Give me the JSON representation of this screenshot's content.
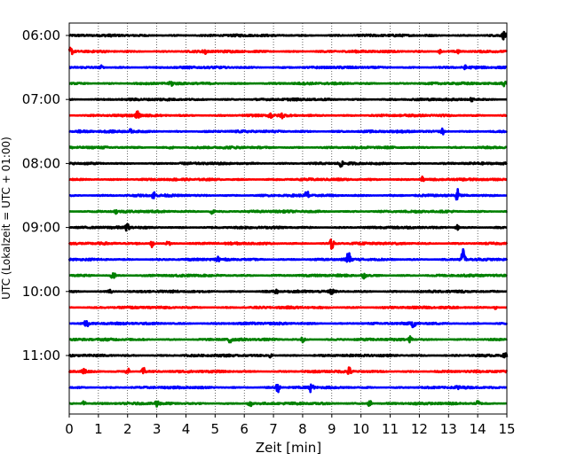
{
  "chart_data": {
    "type": "line",
    "title": "",
    "xlabel": "Zeit  [min]",
    "ylabel": "UTC (Lokalzeit = UTC + 01:00)",
    "xlim": [
      0,
      15
    ],
    "x_ticks": [
      0,
      1,
      2,
      3,
      4,
      5,
      6,
      7,
      8,
      9,
      10,
      11,
      12,
      13,
      14,
      15
    ],
    "y_tick_labels": [
      "06:00",
      "07:00",
      "08:00",
      "09:00",
      "10:00",
      "11:00"
    ],
    "y_tick_rows": [
      0,
      4,
      8,
      12,
      16,
      20
    ],
    "row_interval_min": 15,
    "grid": "vertical-dotted",
    "legend": "none",
    "color_cycle": [
      "#000000",
      "#ff0000",
      "#0000ff",
      "#008000"
    ],
    "series": [
      {
        "start": "06:00",
        "bursts": [
          {
            "t": 14.9,
            "a": 0.6
          }
        ]
      },
      {
        "start": "06:15",
        "bursts": [
          {
            "t": 0.05,
            "a": 0.6
          },
          {
            "t": 4.65,
            "a": 0.4
          },
          {
            "t": 12.7,
            "a": 0.3
          },
          {
            "t": 13.3,
            "a": 0.4
          }
        ]
      },
      {
        "start": "06:30",
        "bursts": [
          {
            "t": 1.1,
            "a": 0.3
          },
          {
            "t": 13.6,
            "a": 0.3
          }
        ]
      },
      {
        "start": "06:45",
        "bursts": [
          {
            "t": 3.5,
            "a": 0.3
          },
          {
            "t": 14.9,
            "a": 0.4
          }
        ]
      },
      {
        "start": "07:00",
        "bursts": [
          {
            "t": 13.8,
            "a": 0.3
          }
        ]
      },
      {
        "start": "07:15",
        "bursts": [
          {
            "t": 2.35,
            "a": 0.8
          },
          {
            "t": 6.9,
            "a": 0.5
          },
          {
            "t": 7.3,
            "a": 0.3
          }
        ]
      },
      {
        "start": "07:30",
        "bursts": [
          {
            "t": 0.4,
            "a": 0.3
          },
          {
            "t": 2.1,
            "a": 0.3
          },
          {
            "t": 12.8,
            "a": 0.5
          }
        ]
      },
      {
        "start": "07:45",
        "bursts": [
          {
            "t": 3.5,
            "a": 0.25
          }
        ]
      },
      {
        "start": "08:00",
        "bursts": [
          {
            "t": 9.3,
            "a": 0.5
          }
        ]
      },
      {
        "start": "08:15",
        "bursts": [
          {
            "t": 12.1,
            "a": 0.4
          }
        ]
      },
      {
        "start": "08:30",
        "bursts": [
          {
            "t": 2.9,
            "a": 0.6
          },
          {
            "t": 8.15,
            "a": 0.8
          },
          {
            "t": 13.3,
            "a": 1.0
          }
        ]
      },
      {
        "start": "08:45",
        "bursts": [
          {
            "t": 1.6,
            "a": 0.3
          },
          {
            "t": 4.9,
            "a": 0.4
          }
        ]
      },
      {
        "start": "09:00",
        "bursts": [
          {
            "t": 2.0,
            "a": 0.7
          },
          {
            "t": 13.3,
            "a": 0.4
          }
        ]
      },
      {
        "start": "09:15",
        "bursts": [
          {
            "t": 2.85,
            "a": 0.6
          },
          {
            "t": 3.4,
            "a": 0.4
          },
          {
            "t": 9.0,
            "a": 0.8
          }
        ]
      },
      {
        "start": "09:30",
        "bursts": [
          {
            "t": 5.1,
            "a": 0.5
          },
          {
            "t": 9.55,
            "a": 1.9
          },
          {
            "t": 13.5,
            "a": 2.4
          }
        ]
      },
      {
        "start": "09:45",
        "bursts": [
          {
            "t": 1.5,
            "a": 0.7
          },
          {
            "t": 10.1,
            "a": 0.4
          }
        ]
      },
      {
        "start": "10:00",
        "bursts": [
          {
            "t": 1.4,
            "a": 0.3
          },
          {
            "t": 7.1,
            "a": 0.3
          },
          {
            "t": 9.0,
            "a": 0.4
          }
        ]
      },
      {
        "start": "10:15",
        "bursts": [
          {
            "t": 14.6,
            "a": 0.3
          }
        ]
      },
      {
        "start": "10:30",
        "bursts": [
          {
            "t": 0.6,
            "a": 0.8
          },
          {
            "t": 11.8,
            "a": 0.6
          }
        ]
      },
      {
        "start": "10:45",
        "bursts": [
          {
            "t": 5.5,
            "a": 0.9
          },
          {
            "t": 8.0,
            "a": 0.6
          },
          {
            "t": 11.7,
            "a": 0.5
          }
        ]
      },
      {
        "start": "11:00",
        "bursts": [
          {
            "t": 6.9,
            "a": 0.4
          },
          {
            "t": 14.95,
            "a": 0.5
          }
        ]
      },
      {
        "start": "11:15",
        "bursts": [
          {
            "t": 0.5,
            "a": 0.7
          },
          {
            "t": 2.0,
            "a": 0.6
          },
          {
            "t": 2.55,
            "a": 0.6
          },
          {
            "t": 9.6,
            "a": 0.6
          }
        ]
      },
      {
        "start": "11:30",
        "bursts": [
          {
            "t": 7.15,
            "a": 0.7
          },
          {
            "t": 8.3,
            "a": 0.8
          },
          {
            "t": 13.3,
            "a": 0.3
          }
        ]
      },
      {
        "start": "11:45",
        "bursts": [
          {
            "t": 0.5,
            "a": 0.4
          },
          {
            "t": 3.0,
            "a": 0.5
          },
          {
            "t": 6.2,
            "a": 0.5
          },
          {
            "t": 10.3,
            "a": 0.5
          },
          {
            "t": 14.0,
            "a": 0.5
          }
        ]
      }
    ]
  }
}
